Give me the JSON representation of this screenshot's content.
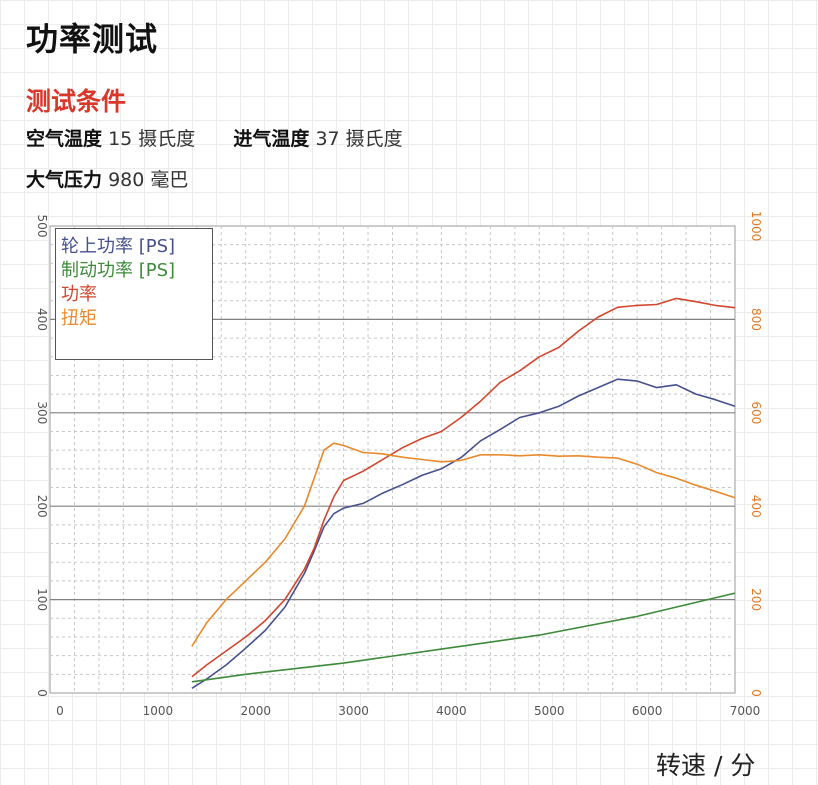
{
  "title": "功率测试",
  "conditions": {
    "heading": "测试条件",
    "items": [
      {
        "label": "空气温度",
        "value": "15 摄氏度"
      },
      {
        "label": "进气温度",
        "value": "37 摄氏度"
      },
      {
        "label": "大气压力",
        "value": "980 毫巴"
      }
    ]
  },
  "chart_data": {
    "type": "line",
    "xlabel": "转速 / 分",
    "xlim": [
      0,
      7000
    ],
    "x_ticks": [
      0,
      1000,
      2000,
      3000,
      4000,
      5000,
      6000,
      7000
    ],
    "y_left": {
      "lim": [
        0,
        500
      ],
      "ticks": [
        0,
        100,
        200,
        300,
        400,
        500
      ],
      "color": "#555555"
    },
    "y_right": {
      "lim": [
        0,
        1000
      ],
      "ticks": [
        0,
        200,
        400,
        600,
        800,
        1000
      ],
      "color": "#e07a2a"
    },
    "grid": true,
    "legend_position": "top-left",
    "series": [
      {
        "name": "轮上功率 [PS]",
        "axis": "left",
        "color": "#46508c",
        "x": [
          1450,
          1600,
          1800,
          2000,
          2200,
          2400,
          2600,
          2700,
          2800,
          2900,
          3000,
          3200,
          3400,
          3600,
          3800,
          4000,
          4200,
          4400,
          4600,
          4800,
          5000,
          5200,
          5400,
          5600,
          5800,
          6000,
          6200,
          6400,
          6600,
          6800,
          7000
        ],
        "y": [
          5,
          15,
          30,
          48,
          67,
          92,
          128,
          152,
          178,
          192,
          198,
          203,
          214,
          223,
          233,
          240,
          252,
          270,
          282,
          295,
          300,
          307,
          318,
          327,
          336,
          334,
          327,
          330,
          320,
          314,
          307
        ]
      },
      {
        "name": "制动功率 [PS]",
        "axis": "left",
        "color": "#3d8a3a",
        "x": [
          1450,
          2000,
          3000,
          4000,
          5000,
          6000,
          7000
        ],
        "y": [
          12,
          20,
          32,
          47,
          62,
          82,
          107
        ]
      },
      {
        "name": "功率",
        "axis": "right",
        "color": "#d2462e",
        "x": [
          1450,
          1600,
          1800,
          2000,
          2200,
          2400,
          2600,
          2700,
          2800,
          2900,
          3000,
          3200,
          3400,
          3600,
          3800,
          4000,
          4200,
          4400,
          4600,
          4800,
          5000,
          5200,
          5400,
          5600,
          5800,
          6000,
          6200,
          6400,
          6600,
          6800,
          7000
        ],
        "y": [
          35,
          60,
          90,
          120,
          155,
          200,
          265,
          310,
          370,
          420,
          455,
          475,
          500,
          525,
          545,
          560,
          590,
          625,
          665,
          690,
          720,
          740,
          775,
          805,
          826,
          830,
          832,
          845,
          838,
          830,
          825
        ]
      },
      {
        "name": "扭矩",
        "axis": "right",
        "color": "#e88a2c",
        "x": [
          1450,
          1600,
          1800,
          2000,
          2200,
          2400,
          2600,
          2700,
          2800,
          2900,
          3000,
          3200,
          3400,
          3600,
          3800,
          4000,
          4200,
          4400,
          4600,
          4800,
          5000,
          5200,
          5400,
          5600,
          5800,
          6000,
          6200,
          6400,
          6600,
          6800,
          7000
        ],
        "y": [
          100,
          150,
          200,
          240,
          280,
          330,
          400,
          460,
          520,
          535,
          530,
          515,
          512,
          505,
          500,
          495,
          498,
          510,
          510,
          508,
          510,
          507,
          508,
          505,
          503,
          490,
          472,
          460,
          445,
          432,
          418
        ]
      }
    ]
  }
}
